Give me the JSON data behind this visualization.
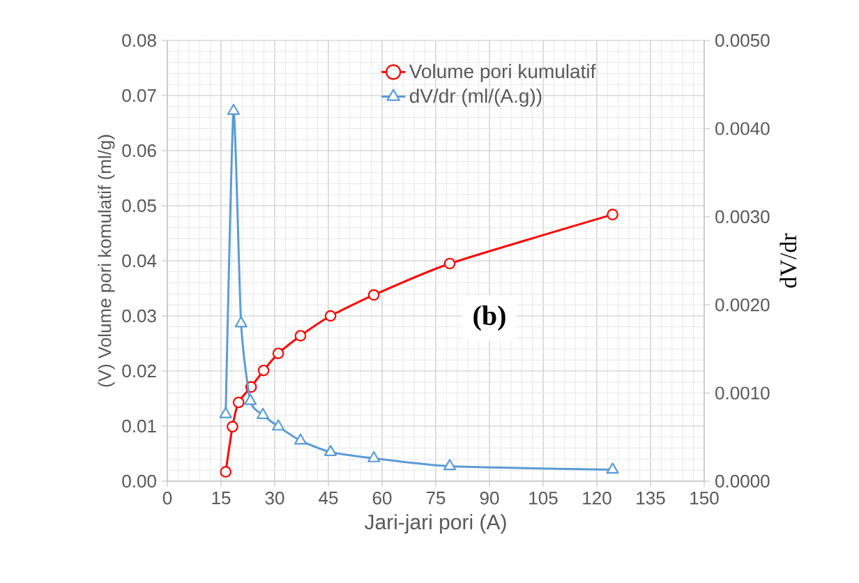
{
  "chart_data": {
    "type": "line",
    "xlabel": "Jari-jari pori (A)",
    "ylabel": "(V) Volume pori komulatif (ml/g)",
    "y2label": "dV/dr",
    "xlim": [
      0,
      150
    ],
    "xticks": [
      0,
      15,
      30,
      45,
      60,
      75,
      90,
      105,
      120,
      135,
      150
    ],
    "ylim": [
      0,
      0.08
    ],
    "yticks": [
      {
        "value": 0,
        "label": "0.00"
      },
      {
        "value": 0.01,
        "label": "0.01"
      },
      {
        "value": 0.02,
        "label": "0.02"
      },
      {
        "value": 0.03,
        "label": "0.03"
      },
      {
        "value": 0.04,
        "label": "0.04"
      },
      {
        "value": 0.05,
        "label": "0.05"
      },
      {
        "value": 0.06,
        "label": "0.06"
      },
      {
        "value": 0.07,
        "label": "0.07"
      },
      {
        "value": 0.08,
        "label": "0.08"
      }
    ],
    "y2lim": [
      0,
      0.005
    ],
    "y2ticks": [
      {
        "value": 0,
        "label": "0.0000"
      },
      {
        "value": 0.001,
        "label": "0.0010"
      },
      {
        "value": 0.002,
        "label": "0.0020"
      },
      {
        "value": 0.003,
        "label": "0.0030"
      },
      {
        "value": 0.004,
        "label": "0.0040"
      },
      {
        "value": 0.005,
        "label": "0.0050"
      }
    ],
    "grid": true,
    "legend": "top",
    "annotations": [
      "(b)"
    ],
    "series": [
      {
        "name": "Volume pori kumulatif",
        "color": "#ff0000",
        "marker": "circle",
        "x": [
          16.3,
          18.2,
          19.9,
          23.4,
          26.9,
          31.0,
          37.2,
          45.6,
          57.7,
          78.9,
          124.4
        ],
        "values": [
          0.0017,
          0.0099,
          0.0143,
          0.0171,
          0.0201,
          0.0232,
          0.0264,
          0.03,
          0.0338,
          0.0395,
          0.0484
        ]
      },
      {
        "name": "dV/dr (ml/(A.g))",
        "color": "#5b9bd5",
        "marker": "triangle",
        "axis": "y2",
        "x": [
          16.3,
          18.5,
          20.6,
          23.2,
          26.7,
          31.0,
          37.2,
          45.6,
          57.7,
          78.9,
          124.4
        ],
        "values": [
          0.00076,
          0.0042,
          0.00179,
          0.00091,
          0.00075,
          0.00062,
          0.00046,
          0.00033,
          0.00026,
          0.00017,
          0.00013
        ]
      }
    ]
  }
}
